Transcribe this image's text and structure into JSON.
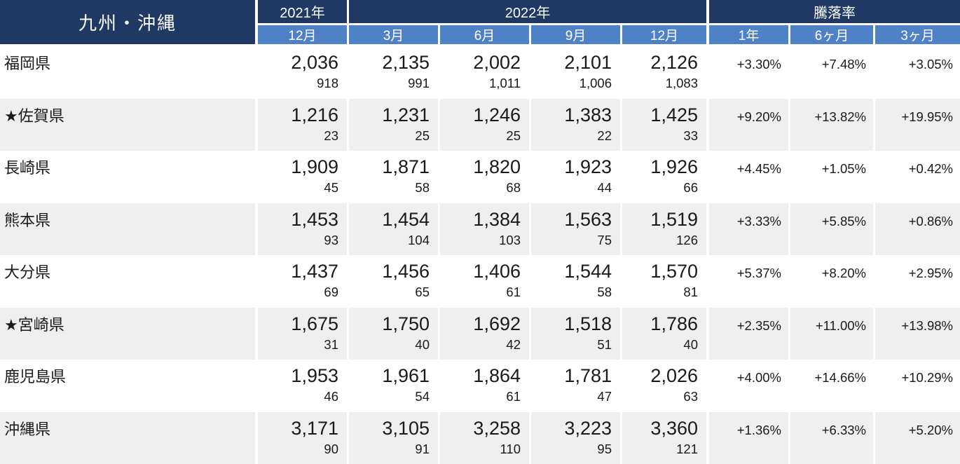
{
  "chart_data": {
    "type": "table",
    "title": "九州・沖縄",
    "col_groups": [
      {
        "label": "2021年",
        "span": 1
      },
      {
        "label": "2022年",
        "span": 4
      },
      {
        "label": "騰落率",
        "span": 3
      }
    ],
    "period_columns": [
      "12月",
      "3月",
      "6月",
      "9月",
      "12月"
    ],
    "rate_columns": [
      "1年",
      "6ヶ月",
      "3ヶ月"
    ],
    "rows": [
      {
        "name": "福岡県",
        "values": [
          "2,036",
          "2,135",
          "2,002",
          "2,101",
          "2,126"
        ],
        "counts": [
          "918",
          "991",
          "1,011",
          "1,006",
          "1,083"
        ],
        "rates": [
          "+3.30%",
          "+7.48%",
          "+3.05%"
        ]
      },
      {
        "name": "★佐賀県",
        "values": [
          "1,216",
          "1,231",
          "1,246",
          "1,383",
          "1,425"
        ],
        "counts": [
          "23",
          "25",
          "25",
          "22",
          "33"
        ],
        "rates": [
          "+9.20%",
          "+13.82%",
          "+19.95%"
        ]
      },
      {
        "name": "長崎県",
        "values": [
          "1,909",
          "1,871",
          "1,820",
          "1,923",
          "1,926"
        ],
        "counts": [
          "45",
          "58",
          "68",
          "44",
          "66"
        ],
        "rates": [
          "+4.45%",
          "+1.05%",
          "+0.42%"
        ]
      },
      {
        "name": "熊本県",
        "values": [
          "1,453",
          "1,454",
          "1,384",
          "1,563",
          "1,519"
        ],
        "counts": [
          "93",
          "104",
          "103",
          "75",
          "126"
        ],
        "rates": [
          "+3.33%",
          "+5.85%",
          "+0.86%"
        ]
      },
      {
        "name": "大分県",
        "values": [
          "1,437",
          "1,456",
          "1,406",
          "1,544",
          "1,570"
        ],
        "counts": [
          "69",
          "65",
          "61",
          "58",
          "81"
        ],
        "rates": [
          "+5.37%",
          "+8.20%",
          "+2.95%"
        ]
      },
      {
        "name": "★宮崎県",
        "values": [
          "1,675",
          "1,750",
          "1,692",
          "1,518",
          "1,786"
        ],
        "counts": [
          "31",
          "40",
          "42",
          "51",
          "40"
        ],
        "rates": [
          "+2.35%",
          "+11.00%",
          "+13.98%"
        ]
      },
      {
        "name": "鹿児島県",
        "values": [
          "1,953",
          "1,961",
          "1,864",
          "1,781",
          "2,026"
        ],
        "counts": [
          "46",
          "54",
          "61",
          "47",
          "63"
        ],
        "rates": [
          "+4.00%",
          "+14.66%",
          "+10.29%"
        ]
      },
      {
        "name": "沖縄県",
        "values": [
          "3,171",
          "3,105",
          "3,258",
          "3,223",
          "3,360"
        ],
        "counts": [
          "90",
          "91",
          "110",
          "95",
          "121"
        ],
        "rates": [
          "+1.36%",
          "+6.33%",
          "+5.20%"
        ]
      }
    ]
  },
  "colors": {
    "header_dark_navy": "#1f3864",
    "header_medium_blue": "#4f81c7",
    "row_stripe_gray": "#efefef",
    "text": "#1a1a1a"
  }
}
